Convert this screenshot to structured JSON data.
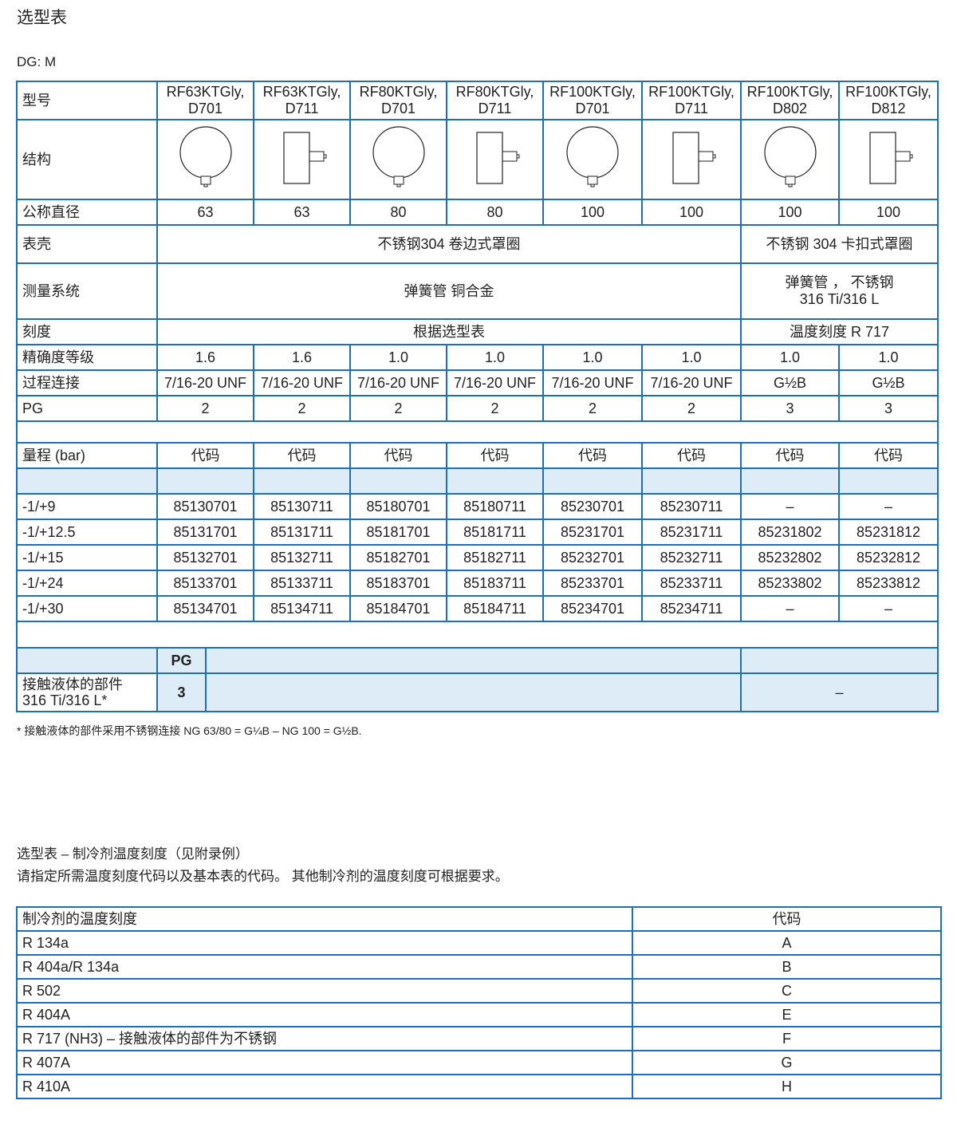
{
  "title": "选型表",
  "dg": "DG: M",
  "main_table": {
    "model_label": "型号",
    "models": [
      [
        "RF63KTGly,",
        "D701"
      ],
      [
        "RF63KTGly,",
        "D711"
      ],
      [
        "RF80KTGly,",
        "D701"
      ],
      [
        "RF80KTGly,",
        "D711"
      ],
      [
        "RF100KTGly,",
        "D701"
      ],
      [
        "RF100KTGly,",
        "D711"
      ],
      [
        "RF100KTGly,",
        "D802"
      ],
      [
        "RF100KTGly,",
        "D812"
      ]
    ],
    "structure_label": "结构",
    "structure_icons": [
      "round-gauge-icon",
      "back-mount-gauge-icon",
      "round-gauge-icon",
      "back-mount-gauge-icon",
      "round-gauge-icon",
      "back-mount-gauge-icon",
      "round-gauge-icon",
      "back-mount-gauge-icon"
    ],
    "nominal_diameter": {
      "label": "公称直径",
      "values": [
        "63",
        "63",
        "80",
        "80",
        "100",
        "100",
        "100",
        "100"
      ]
    },
    "case": {
      "label": "表壳",
      "value_a": "不锈钢304 卷边式罩圈",
      "value_b": "不锈钢 304 卡扣式罩圈"
    },
    "measuring_system": {
      "label": "测量系统",
      "value_a": "弹簧管 铜合金",
      "value_b_line1": "弹簧管 ， 不锈钢",
      "value_b_line2": "316 Ti/316 L"
    },
    "dial": {
      "label": "刻度",
      "value_a": "根据选型表",
      "value_b": "温度刻度 R 717"
    },
    "accuracy": {
      "label": "精确度等级",
      "values": [
        "1.6",
        "1.6",
        "1.0",
        "1.0",
        "1.0",
        "1.0",
        "1.0",
        "1.0"
      ]
    },
    "connection": {
      "label": "过程连接",
      "values": [
        "7/16-20 UNF",
        "7/16-20 UNF",
        "7/16-20 UNF",
        "7/16-20 UNF",
        "7/16-20 UNF",
        "7/16-20 UNF",
        "G½B",
        "G½B"
      ]
    },
    "pg": {
      "label": "PG",
      "values": [
        "2",
        "2",
        "2",
        "2",
        "2",
        "2",
        "3",
        "3"
      ]
    },
    "range_header": {
      "label": "量程 (bar)",
      "code_label": "代码"
    },
    "ranges": [
      {
        "range": "-1/+9",
        "codes": [
          "85130701",
          "85130711",
          "85180701",
          "85180711",
          "85230701",
          "85230711",
          "–",
          "–"
        ]
      },
      {
        "range": "-1/+12.5",
        "codes": [
          "85131701",
          "85131711",
          "85181701",
          "85181711",
          "85231701",
          "85231711",
          "85231802",
          "85231812"
        ]
      },
      {
        "range": "-1/+15",
        "codes": [
          "85132701",
          "85132711",
          "85182701",
          "85182711",
          "85232701",
          "85232711",
          "85232802",
          "85232812"
        ]
      },
      {
        "range": "-1/+24",
        "codes": [
          "85133701",
          "85133711",
          "85183701",
          "85183711",
          "85233701",
          "85233711",
          "85233802",
          "85233812"
        ]
      },
      {
        "range": "-1/+30",
        "codes": [
          "85134701",
          "85134711",
          "85184701",
          "85184711",
          "85234701",
          "85234711",
          "–",
          "–"
        ]
      }
    ],
    "wetted": {
      "pg_header": "PG",
      "label": "接触液体的部件",
      "material": "316 Ti/316 L*",
      "pg": "3",
      "value_b": "–"
    }
  },
  "footnote": "* 接触液体的部件采用不锈钢连接 NG 63/80 = G¼B – NG 100 = G½B.",
  "subtitle": "选型表 – 制冷剂温度刻度（见附录例）",
  "instruction": "请指定所需温度刻度代码以及基本表的代码。 其他制冷剂的温度刻度可根据要求。",
  "ref_table": {
    "headers": [
      "制冷剂的温度刻度",
      "代码"
    ],
    "rows": [
      [
        "R 134a",
        "A"
      ],
      [
        "R 404a/R 134a",
        "B"
      ],
      [
        "R 502",
        "C"
      ],
      [
        "R 404A",
        "E"
      ],
      [
        "R 717 (NH3) – 接触液体的部件为不锈钢",
        "F"
      ],
      [
        "R 407A",
        "G"
      ],
      [
        "R 410A",
        "H"
      ]
    ]
  },
  "colors": {
    "border": "#1e6fb3",
    "fill": "#deecf8"
  }
}
